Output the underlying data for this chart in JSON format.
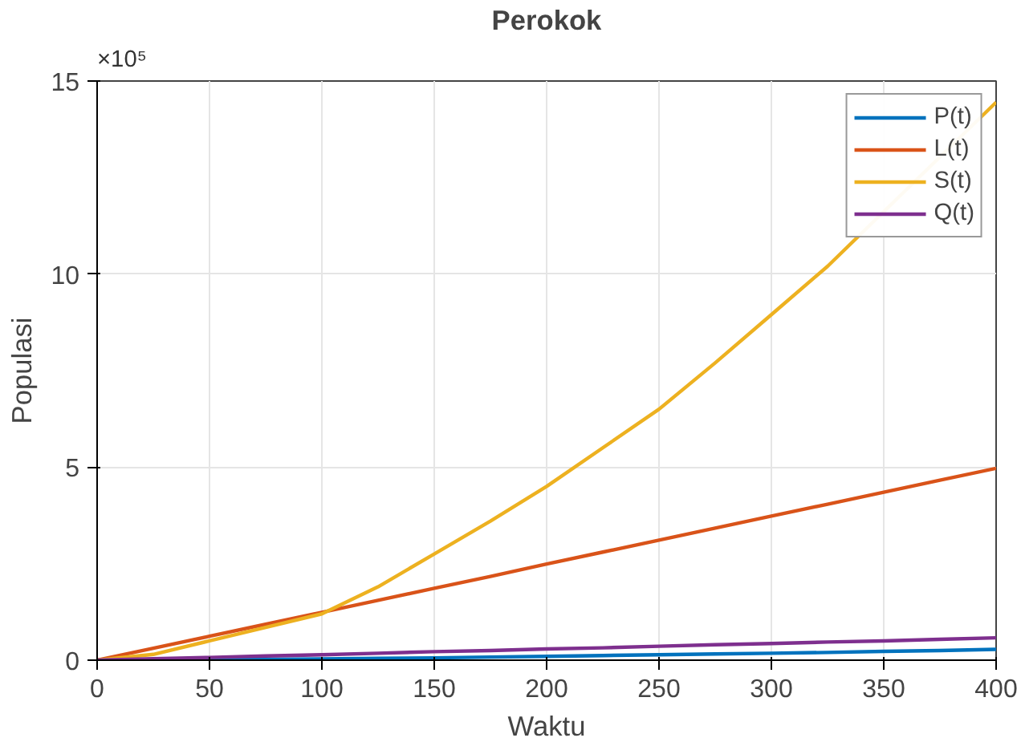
{
  "chart_data": {
    "type": "line",
    "title": "Perokok",
    "xlabel": "Waktu",
    "ylabel": "Populasi",
    "annotations": [
      "×10⁵"
    ],
    "x": [
      0,
      25,
      50,
      75,
      100,
      125,
      150,
      175,
      200,
      225,
      250,
      275,
      300,
      325,
      350,
      375,
      400
    ],
    "series": [
      {
        "name": "P(t)",
        "color": "#0072bd",
        "values": [
          0,
          0,
          0.01,
          0.02,
          0.03,
          0.05,
          0.06,
          0.08,
          0.1,
          0.12,
          0.14,
          0.16,
          0.18,
          0.2,
          0.23,
          0.25,
          0.28
        ]
      },
      {
        "name": "L(t)",
        "color": "#d95319",
        "values": [
          0,
          0.31,
          0.62,
          0.93,
          1.24,
          1.55,
          1.86,
          2.17,
          2.49,
          2.8,
          3.11,
          3.42,
          3.73,
          4.04,
          4.35,
          4.66,
          4.97
        ]
      },
      {
        "name": "S(t)",
        "color": "#edb120",
        "values": [
          0,
          0.15,
          0.5,
          0.85,
          1.2,
          1.9,
          2.75,
          3.6,
          4.5,
          5.5,
          6.5,
          7.7,
          8.95,
          10.2,
          null,
          null,
          14.45
        ]
      },
      {
        "name": "Q(t)",
        "color": "#7e2f8e",
        "values": [
          0,
          0.04,
          0.07,
          0.11,
          0.14,
          0.18,
          0.22,
          0.25,
          0.29,
          0.32,
          0.36,
          0.4,
          0.43,
          0.47,
          0.5,
          0.54,
          0.58
        ]
      }
    ],
    "xlim": [
      0,
      400
    ],
    "ylim": [
      0,
      15
    ],
    "xticks": [
      0,
      50,
      100,
      150,
      200,
      250,
      300,
      350,
      400
    ],
    "yticks": [
      0,
      5,
      10,
      15
    ],
    "grid": true,
    "legend": "top right",
    "line_style": "solid",
    "marker": "none"
  }
}
